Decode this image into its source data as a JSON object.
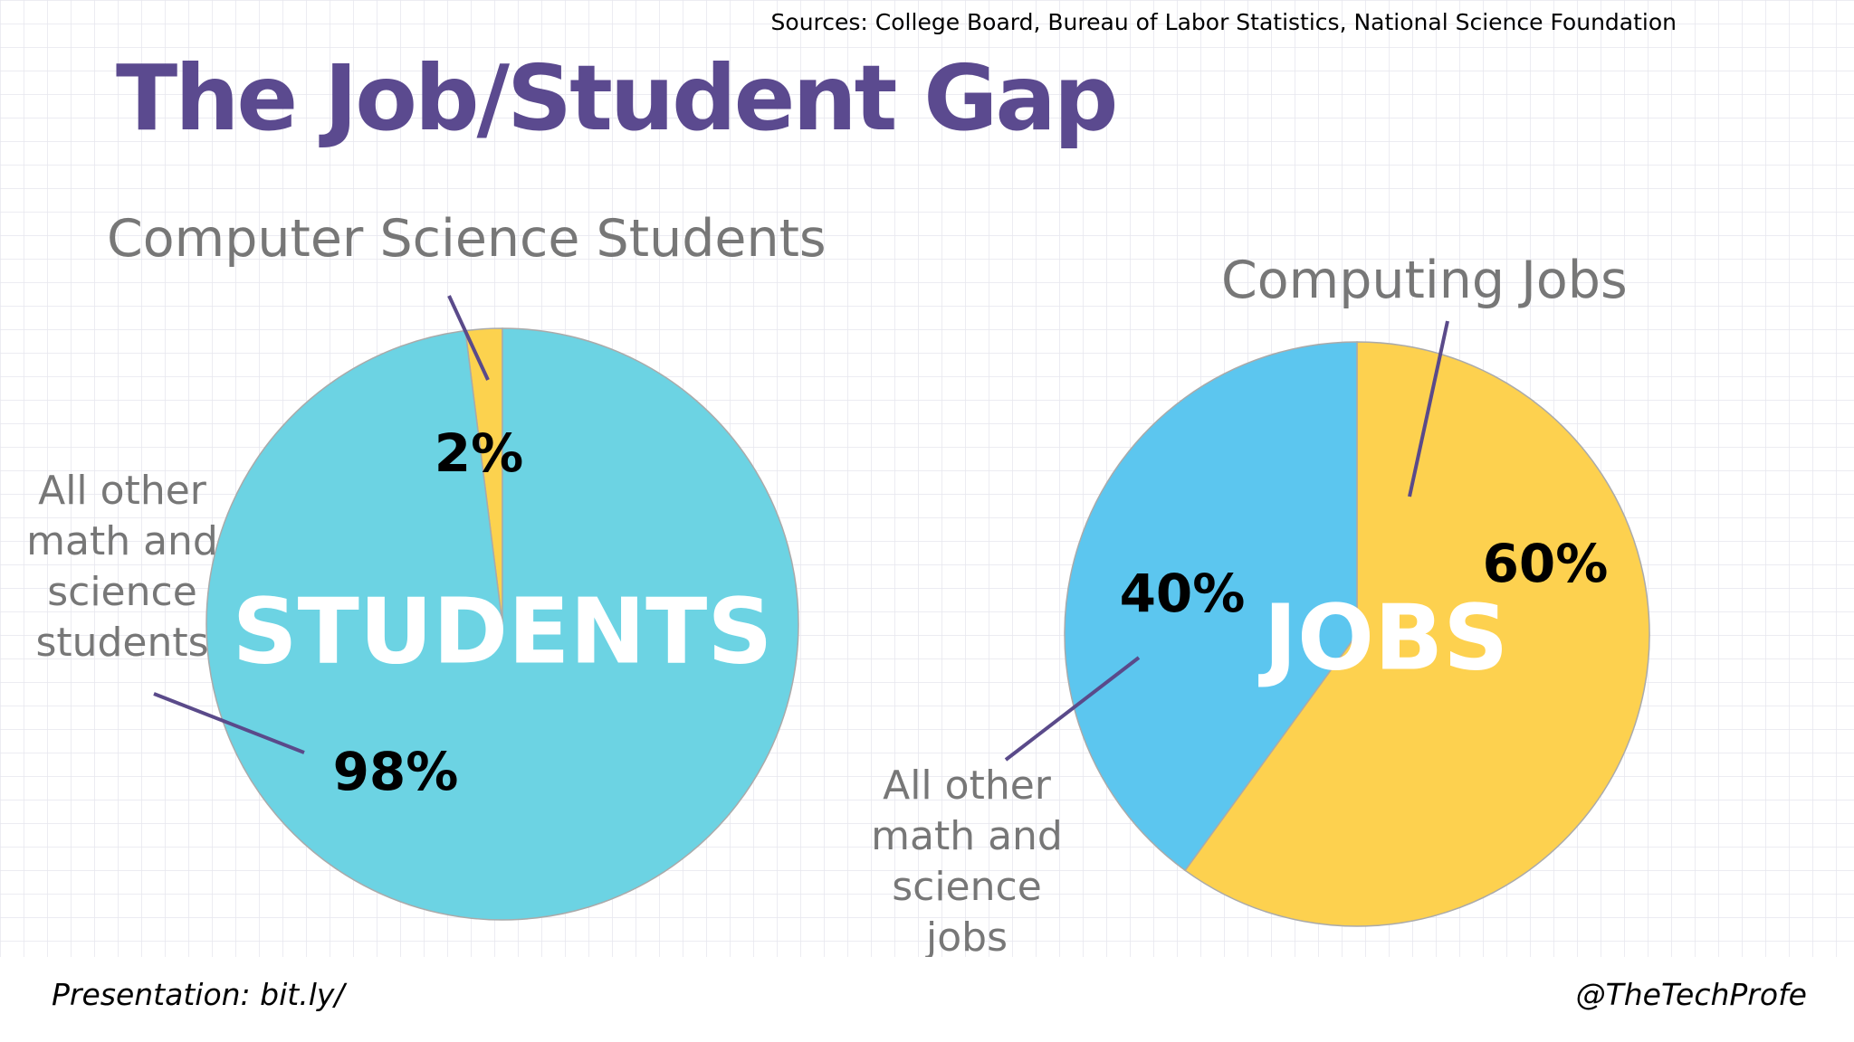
{
  "title": "The Job/Student Gap",
  "sources": "Sources: College Board, Bureau of Labor Statistics, National Science Foundation",
  "footer": {
    "left": "Presentation: bit.ly/",
    "right": "@TheTechProfe"
  },
  "chart_data": [
    {
      "type": "pie",
      "center_label": "STUDENTS",
      "counterclockwise": true,
      "categories": [
        "Computer Science Students",
        "All other math and science students"
      ],
      "values": [
        2,
        98
      ],
      "value_labels": [
        "2%",
        "98%"
      ],
      "colors": [
        "#fcd24e",
        "#6cd3e3"
      ]
    },
    {
      "type": "pie",
      "center_label": "JOBS",
      "counterclockwise": false,
      "categories": [
        "Computing Jobs",
        "All other math and science jobs"
      ],
      "values": [
        60,
        40
      ],
      "value_labels": [
        "60%",
        "40%"
      ],
      "colors": [
        "#fdd14f",
        "#5cc6ef"
      ]
    }
  ]
}
